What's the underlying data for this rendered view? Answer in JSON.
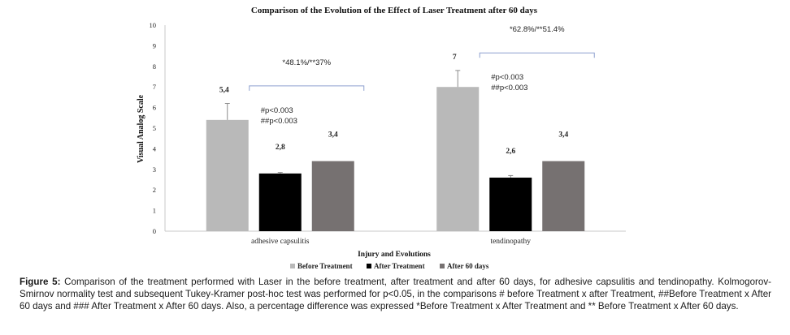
{
  "chart_data": {
    "type": "bar",
    "title": "Comparison of the Evolution of the Effect of Laser Treatment after 60 days",
    "xlabel": "Injury and Evolutions",
    "ylabel": "Visual Analog Scale",
    "ylim": [
      0,
      10
    ],
    "yticks": [
      "0",
      "1",
      "2",
      "3",
      "4",
      "5",
      "6",
      "7",
      "8",
      "9",
      "10"
    ],
    "categories": [
      "adhesive capsulitis",
      "tendinopathy"
    ],
    "series": [
      {
        "name": "Before Treatment",
        "color": "#b9b9b9",
        "values": [
          5.4,
          7
        ],
        "labels": [
          "5,4",
          "7"
        ],
        "error": [
          0.8,
          0.8
        ]
      },
      {
        "name": "After Treatment",
        "color": "#000000",
        "values": [
          2.8,
          2.6
        ],
        "labels": [
          "2,8",
          "2,6"
        ],
        "error": [
          0.05,
          0.1
        ]
      },
      {
        "name": "After 60 days",
        "color": "#767171",
        "values": [
          3.4,
          3.4
        ],
        "labels": [
          "3,4",
          "3,4"
        ],
        "error": [
          0,
          0
        ]
      }
    ],
    "annotations": [
      {
        "category": 0,
        "percent": "*48.1%/**37%",
        "stats": [
          "#p<0.003",
          "##p<0.003"
        ]
      },
      {
        "category": 1,
        "percent": "*62.8%/**51.4%",
        "stats": [
          "#p<0.003",
          "##p<0.003"
        ]
      }
    ],
    "legend_position": "bottom",
    "grid": false
  },
  "caption": {
    "label": "Figure 5:",
    "text": "Comparison of the treatment performed with Laser in the before treatment, after treatment and after 60 days, for adhesive capsulitis and tendinopathy. Kolmogorov-Smirnov normality test and subsequent Tukey-Kramer post-hoc test was performed for p<0.05, in the comparisons # before Treatment x after Treatment, ##Before Treatment x After 60 days and ### After Treatment x After 60 days. Also, a percentage difference was expressed *Before Treatment x After Treatment and ** Before Treatment x After 60 days."
  }
}
